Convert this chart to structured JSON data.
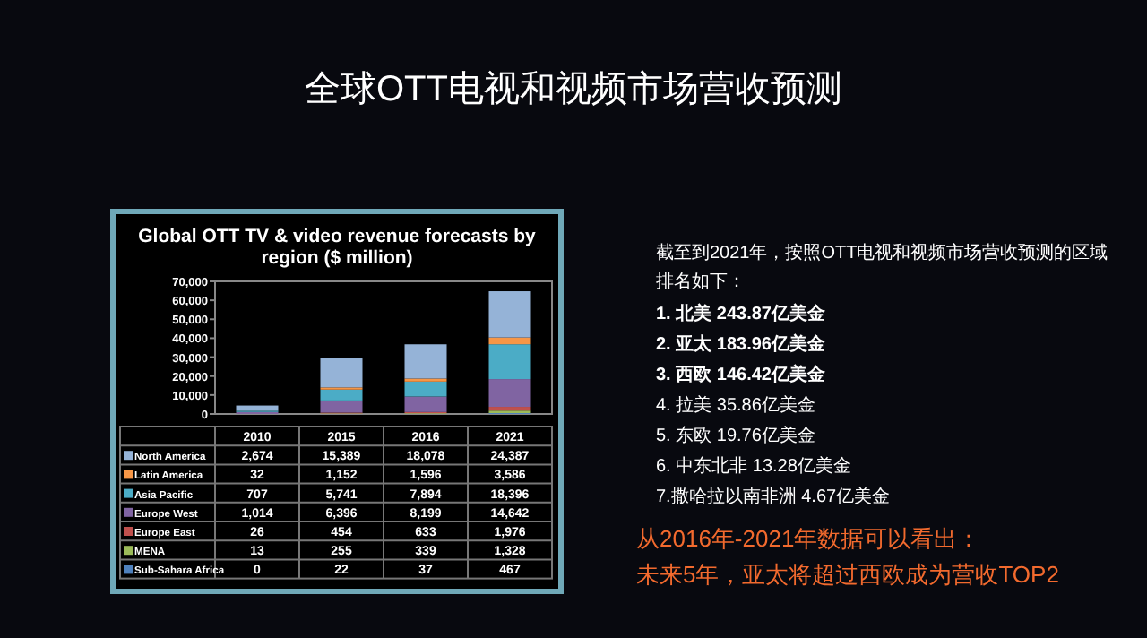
{
  "chart_data": {
    "type": "bar",
    "stacked": true,
    "title": "全球OTT电视和视频市场营收预测",
    "subtitle": "Global OTT TV & video revenue forecasts by region ($ million)",
    "categories": [
      "2010",
      "2015",
      "2016",
      "2021"
    ],
    "ylim": [
      0,
      70000
    ],
    "yticks": [
      0,
      {
        "value": 10000,
        "label": "10,000"
      },
      {
        "value": 20000,
        "label": "20,000"
      },
      {
        "value": 30000,
        "label": "30,000"
      },
      {
        "value": 40000,
        "label": "40,000"
      },
      {
        "value": 50000,
        "label": "50,000"
      },
      {
        "value": 60000,
        "label": "60,000"
      },
      {
        "value": 70000,
        "label": "70,000"
      }
    ],
    "legend": "bottom",
    "series": [
      {
        "name": "Sub-Sahara Africa",
        "color": "#4f81bd",
        "values": [
          0,
          22,
          37,
          467
        ],
        "value_labels": [
          "0",
          "22",
          "37",
          "467"
        ]
      },
      {
        "name": "MENA",
        "color": "#9bbb59",
        "values": [
          13,
          255,
          339,
          1328
        ],
        "value_labels": [
          "13",
          "255",
          "339",
          "1,328"
        ]
      },
      {
        "name": "Europe East",
        "color": "#c0504d",
        "values": [
          26,
          454,
          633,
          1976
        ],
        "value_labels": [
          "26",
          "454",
          "633",
          "1,976"
        ]
      },
      {
        "name": "Europe West",
        "color": "#8064a2",
        "values": [
          1014,
          6396,
          8199,
          14642
        ],
        "value_labels": [
          "1,014",
          "6,396",
          "8,199",
          "14,642"
        ]
      },
      {
        "name": "Asia Pacific",
        "color": "#4bacc6",
        "values": [
          707,
          5741,
          7894,
          18396
        ],
        "value_labels": [
          "707",
          "5,741",
          "7,894",
          "18,396"
        ]
      },
      {
        "name": "Latin America",
        "color": "#f79646",
        "values": [
          32,
          1152,
          1596,
          3586
        ],
        "value_labels": [
          "32",
          "1,152",
          "1,596",
          "3,586"
        ]
      },
      {
        "name": "North America",
        "color": "#95b3d7",
        "values": [
          2674,
          15389,
          18078,
          24387
        ],
        "value_labels": [
          "2,674",
          "15,389",
          "18,078",
          "24,387"
        ]
      }
    ],
    "annotations": [
      "截至到2021年，按照OTT电视和视频市场营收预测的区域排名如下：",
      "1. 北美 243.87亿美金",
      "2. 亚太 183.96亿美金",
      "3. 西欧 146.42亿美金",
      "4. 拉美 35.86亿美金",
      "5. 东欧 19.76亿美金",
      "6. 中东北非 13.28亿美金",
      "7.撒哈拉以南非洲 4.67亿美金",
      "从2016年-2021年数据可以看出：",
      "未来5年，亚太将超过西欧成为营收TOP2"
    ]
  }
}
